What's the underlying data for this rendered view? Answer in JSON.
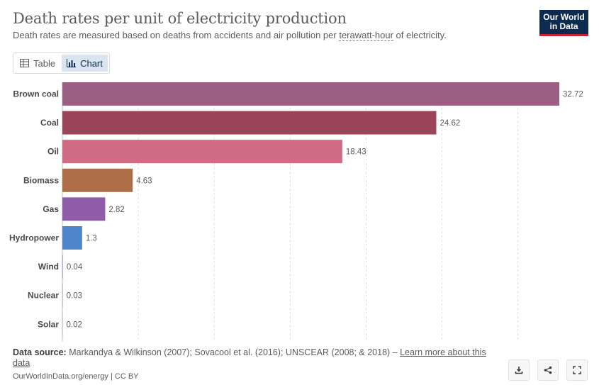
{
  "header": {
    "title": "Death rates per unit of electricity production",
    "subtitle_pre": "Death rates are measured based on deaths from accidents and air pollution per ",
    "subtitle_link": "terawatt-hour",
    "subtitle_post": " of electricity."
  },
  "logo": {
    "line1": "Our World",
    "line2": "in Data"
  },
  "tabs": [
    {
      "label": "Table",
      "icon": "table-icon",
      "active": false
    },
    {
      "label": "Chart",
      "icon": "bar-chart-icon",
      "active": true
    }
  ],
  "chart_data": {
    "type": "bar",
    "orientation": "horizontal",
    "categories": [
      "Brown coal",
      "Coal",
      "Oil",
      "Biomass",
      "Gas",
      "Hydropower",
      "Wind",
      "Nuclear",
      "Solar"
    ],
    "values": [
      32.72,
      24.62,
      18.43,
      4.63,
      2.82,
      1.3,
      0.04,
      0.03,
      0.02
    ],
    "value_labels": [
      "32.72",
      "24.62",
      "18.43",
      "4.63",
      "2.82",
      "1.3",
      "0.04",
      "0.03",
      "0.02"
    ],
    "colors": [
      "#9c5f84",
      "#9c4558",
      "#cf6b82",
      "#ae6f48",
      "#8e5ca8",
      "#4f86c9",
      "#8aa8cc",
      "#8aa8cc",
      "#8aa8cc"
    ],
    "xlim": [
      0,
      32.72
    ],
    "gridlines": [
      0,
      5,
      10,
      15,
      20,
      25,
      30
    ],
    "grid": true,
    "legend": "none"
  },
  "footer": {
    "source_label": "Data source:",
    "source_text": " Markandya & Wilkinson (2007); Sovacool et al. (2016); UNSCEAR (2008; & 2018) – ",
    "source_link": "Learn more about this data",
    "url_text": "OurWorldInData.org/energy | CC BY"
  },
  "actions": [
    {
      "name": "download-icon"
    },
    {
      "name": "share-icon"
    },
    {
      "name": "fullscreen-icon"
    }
  ]
}
